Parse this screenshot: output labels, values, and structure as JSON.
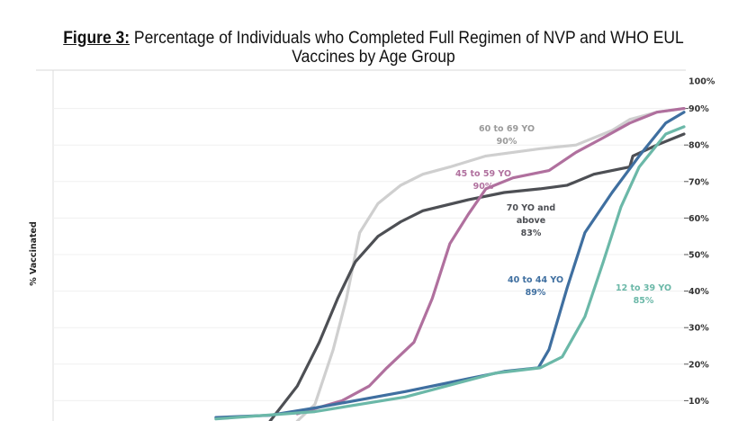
{
  "title": {
    "figure_label": "Figure 3:",
    "line1": " Percentage of Individuals who Completed Full Regimen of NVP and WHO EUL",
    "line2": "Vaccines by Age Group"
  },
  "chart_data": {
    "type": "line",
    "title": "Percentage of Individuals who Completed Full Regimen of NVP and WHO EUL Vaccines by Age Group",
    "xlabel": "",
    "ylabel": "% Vaccinated",
    "xlim": [
      0,
      100
    ],
    "ylim": [
      0,
      100
    ],
    "yticks": [
      "100%",
      "90%",
      "80%",
      "70%",
      "60%",
      "50%",
      "40%",
      "30%",
      "20%",
      "10%"
    ],
    "ytick_values": [
      100,
      90,
      80,
      70,
      60,
      50,
      40,
      30,
      20,
      10
    ],
    "grid": true,
    "series": [
      {
        "name": "60 to 69 YO",
        "final_label": "90%",
        "color": "#cfcfcf",
        "x": [
          38.7,
          41.5,
          44.4,
          46.5,
          48.6,
          51.5,
          55.1,
          58.6,
          62.9,
          68.6,
          77.2,
          82.9,
          88.6,
          91.4,
          95.7,
          100
        ],
        "y": [
          4.4,
          9,
          24,
          38,
          56,
          64,
          69,
          72,
          74,
          77,
          79,
          80,
          84,
          87,
          89,
          90
        ]
      },
      {
        "name": "70 YO and above",
        "final_label": "83%",
        "color": "#4d4f54",
        "x": [
          34.4,
          38.7,
          42.2,
          45.1,
          47.9,
          51.5,
          55.1,
          58.6,
          65.8,
          71.5,
          77.2,
          81.5,
          85.7,
          91.4,
          91.9,
          95.7,
          100
        ],
        "y": [
          4.4,
          14,
          26,
          38,
          48,
          55,
          59,
          62,
          65,
          67,
          68,
          69,
          72,
          74,
          77,
          80,
          83
        ]
      },
      {
        "name": "45 to 59 YO",
        "final_label": "90%",
        "color": "#b0709e",
        "x": [
          38.7,
          45.8,
          50.1,
          52.9,
          57.2,
          60.1,
          62.9,
          65.8,
          68.6,
          72.9,
          78.6,
          82.9,
          87.2,
          91.4,
          95.7,
          100
        ],
        "y": [
          6.4,
          10,
          14,
          19,
          26,
          38,
          53,
          61,
          68,
          71,
          73,
          78,
          82,
          86,
          89,
          90
        ]
      },
      {
        "name": "40 to 44 YO",
        "final_label": "89%",
        "color": "#3f6fa0",
        "x": [
          25.8,
          34.4,
          41.5,
          55.8,
          65.8,
          71.5,
          76.9,
          78.6,
          81.5,
          84.3,
          88.6,
          92.9,
          97.1,
          100
        ],
        "y": [
          5.4,
          6,
          8,
          12.5,
          16,
          18,
          19,
          24,
          41,
          56,
          67,
          77,
          86,
          89
        ]
      },
      {
        "name": "12 to 39 YO",
        "final_label": "85%",
        "color": "#6bb8a8",
        "x": [
          25.8,
          41.5,
          55.8,
          70.0,
          77.2,
          80.7,
          84.3,
          87.2,
          90.0,
          92.9,
          97.1,
          100
        ],
        "y": [
          5,
          7,
          11,
          17.5,
          19,
          22,
          33,
          48,
          63,
          74,
          83,
          85
        ]
      }
    ]
  }
}
